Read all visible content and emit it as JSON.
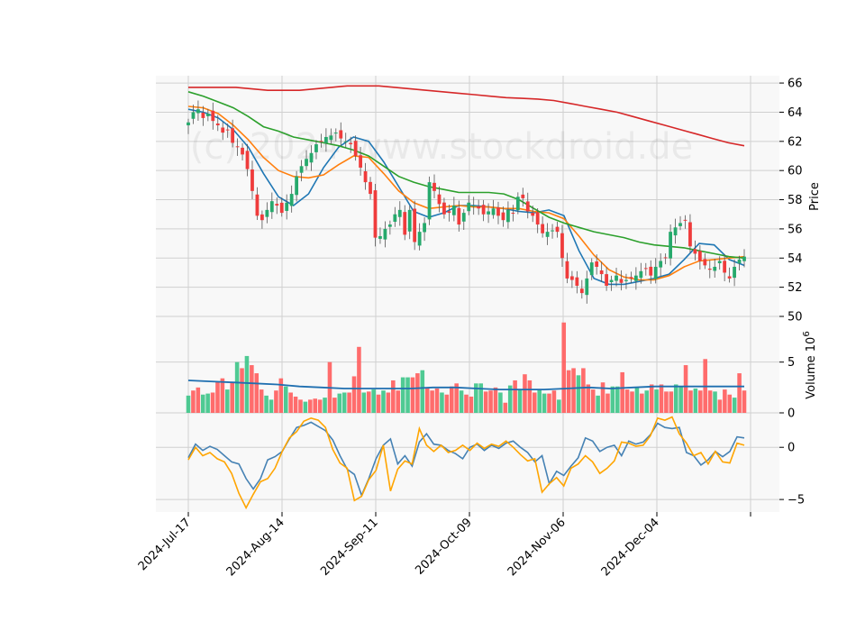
{
  "chart_data": {
    "type": "candlestick",
    "watermark": "(c) 2024 www.stockdroid.de",
    "x_tick_labels": [
      "2024-Jul-17",
      "2024-Aug-14",
      "2024-Sep-11",
      "2024-Oct-09",
      "2024-Nov-06",
      "2024-Dec-04"
    ],
    "grid": true,
    "price_panel": {
      "ylabel": "Price",
      "ylim": [
        50,
        66.5
      ],
      "y_ticks": [
        "50",
        "52",
        "54",
        "56",
        "58",
        "60",
        "62",
        "64",
        "66"
      ],
      "candle_colors": {
        "up": "#26a96c",
        "down": "#ef3b3b"
      },
      "ohlc_closes_approx": [
        63.3,
        64.0,
        64.2,
        63.6,
        63.9,
        63.4,
        63.1,
        62.6,
        62.8,
        61.9,
        61.6,
        61.1,
        60.1,
        58.6,
        56.9,
        56.6,
        57.3,
        57.9,
        57.6,
        57.1,
        57.8,
        58.4,
        59.6,
        60.3,
        60.8,
        61.2,
        61.8,
        62.0,
        62.3,
        62.4,
        62.6,
        62.2,
        62.0,
        61.8,
        61.0,
        60.2,
        59.2,
        58.4,
        55.4,
        55.5,
        56.0,
        56.3,
        57.0,
        57.3,
        55.6,
        57.3,
        55.1,
        55.8,
        56.4,
        59.2,
        58.6,
        57.7,
        57.0,
        57.1,
        57.6,
        56.3,
        57.1,
        57.8,
        57.6,
        57.4,
        57.0,
        57.2,
        57.4,
        56.9,
        56.6,
        57.3,
        57.1,
        58.2,
        58.1,
        57.2,
        56.9,
        56.3,
        55.7,
        55.8,
        55.9,
        55.8,
        54.0,
        52.6,
        52.5,
        52.1,
        51.6,
        52.6,
        53.7,
        53.4,
        52.9,
        52.1,
        52.5,
        52.8,
        52.3,
        52.5,
        52.6,
        52.8,
        53.1,
        53.3,
        52.8,
        53.4,
        53.8,
        54.0,
        55.8,
        56.1,
        56.4,
        56.6,
        54.8,
        54.3,
        53.8,
        53.5,
        53.2,
        53.4,
        53.8,
        53.0,
        52.6,
        53.4,
        53.9,
        54.1
      ],
      "moving_averages": [
        {
          "color": "#1f77b4",
          "values": [
            64.2,
            64.0,
            63.6,
            62.8,
            61.6,
            59.8,
            58.2,
            57.6,
            58.4,
            60.2,
            61.6,
            62.3,
            62.0,
            60.6,
            58.9,
            57.2,
            56.8,
            57.1,
            57.6,
            57.6,
            57.5,
            57.4,
            57.2,
            57.1,
            57.3,
            56.9,
            54.5,
            52.6,
            52.2,
            52.2,
            52.4,
            52.6,
            52.9,
            53.9,
            55.0,
            54.9,
            53.9,
            53.5
          ]
        },
        {
          "color": "#ff7f0e",
          "values": [
            64.4,
            64.3,
            63.9,
            63.1,
            62.1,
            60.9,
            60.0,
            59.6,
            59.5,
            59.7,
            60.4,
            61.0,
            60.9,
            59.8,
            58.6,
            57.8,
            57.4,
            57.5,
            57.6,
            57.5,
            57.5,
            57.4,
            57.4,
            57.2,
            57.1,
            56.7,
            55.5,
            54.2,
            53.2,
            52.7,
            52.5,
            52.5,
            52.8,
            53.4,
            53.8,
            53.9,
            54.0,
            54.1
          ]
        },
        {
          "color": "#2ca02c",
          "values": [
            65.4,
            65.1,
            64.7,
            64.3,
            63.7,
            63.0,
            62.7,
            62.3,
            62.1,
            61.9,
            61.7,
            61.4,
            61.0,
            60.3,
            59.6,
            59.2,
            58.9,
            58.7,
            58.5,
            58.5,
            58.5,
            58.4,
            58.0,
            57.4,
            56.8,
            56.4,
            56.1,
            55.8,
            55.6,
            55.4,
            55.1,
            54.9,
            54.8,
            54.7,
            54.5,
            54.3,
            54.1,
            54.0
          ]
        },
        {
          "color": "#d62728",
          "values": [
            65.7,
            65.7,
            65.7,
            65.7,
            65.6,
            65.5,
            65.5,
            65.5,
            65.6,
            65.7,
            65.8,
            65.8,
            65.8,
            65.7,
            65.6,
            65.5,
            65.4,
            65.3,
            65.2,
            65.1,
            65.0,
            64.95,
            64.9,
            64.8,
            64.6,
            64.4,
            64.2,
            64.0,
            63.7,
            63.4,
            63.1,
            62.8,
            62.5,
            62.2,
            61.9,
            61.7
          ]
        }
      ]
    },
    "volume_panel": {
      "ylabel": "Volume",
      "unit": "10",
      "unit_exponent": "6",
      "ylim": [
        0,
        9.5
      ],
      "y_ticks": [
        "0",
        "5"
      ],
      "volumes": [
        1.7,
        2.2,
        2.5,
        1.8,
        1.9,
        2.0,
        3.1,
        3.4,
        2.3,
        3.0,
        5.0,
        4.4,
        5.6,
        4.7,
        3.9,
        2.3,
        1.7,
        1.3,
        2.2,
        3.4,
        2.6,
        2.0,
        1.6,
        1.3,
        1.1,
        1.3,
        1.4,
        1.3,
        1.5,
        5.0,
        1.5,
        1.9,
        2.0,
        2.0,
        3.6,
        6.5,
        2.0,
        2.1,
        2.3,
        1.8,
        2.2,
        2.0,
        3.2,
        2.2,
        3.5,
        3.5,
        3.5,
        3.9,
        4.2,
        2.5,
        2.2,
        2.4,
        2.0,
        1.8,
        2.6,
        2.9,
        2.2,
        1.8,
        1.6,
        2.9,
        2.9,
        2.1,
        2.2,
        2.5,
        2.0,
        1.0,
        2.7,
        3.2,
        2.3,
        3.8,
        3.2,
        2.0,
        2.3,
        1.9,
        1.9,
        2.2,
        1.3,
        8.9,
        4.2,
        4.4,
        3.7,
        4.4,
        2.8,
        2.3,
        1.7,
        3.0,
        1.9,
        2.6,
        2.6,
        4.0,
        2.3,
        2.1,
        2.5,
        1.9,
        2.2,
        2.8,
        2.3,
        2.8,
        2.1,
        2.1,
        2.8,
        2.6,
        4.7,
        2.2,
        2.4,
        2.2,
        5.3,
        2.2,
        2.1,
        1.3,
        2.3,
        1.8,
        1.5,
        3.9,
        2.2
      ],
      "volume_average": [
        3.2,
        3.1,
        3.0,
        2.9,
        2.8,
        2.6,
        2.5,
        2.4,
        2.4,
        2.4,
        2.4,
        2.5,
        2.5,
        2.4,
        2.3,
        2.3,
        2.3,
        2.4,
        2.5,
        2.4,
        2.5,
        2.6,
        2.6,
        2.6,
        2.6,
        2.6
      ]
    },
    "oscillator_panel": {
      "ylim": [
        -6.2,
        3.3
      ],
      "y_ticks": [
        "-5",
        "0"
      ],
      "series": [
        {
          "color": "#4682b4",
          "values": [
            -1.0,
            0.3,
            -0.3,
            0.1,
            -0.2,
            -0.8,
            -1.4,
            -1.6,
            -3.0,
            -4.0,
            -3.0,
            -1.2,
            -0.9,
            -0.4,
            0.8,
            1.9,
            2.1,
            2.4,
            2.0,
            1.6,
            0.7,
            -0.8,
            -2.1,
            -2.6,
            -4.6,
            -3.0,
            -1.1,
            0.2,
            0.8,
            -1.6,
            -0.8,
            -1.8,
            0.5,
            1.3,
            0.3,
            0.2,
            -0.3,
            -0.6,
            -1.1,
            0.0,
            0.3,
            -0.3,
            0.2,
            -0.1,
            0.4,
            0.6,
            0.0,
            -0.5,
            -1.4,
            -0.8,
            -3.5,
            -2.3,
            -2.7,
            -1.8,
            -1.0,
            0.9,
            0.6,
            -0.4,
            0.0,
            0.2,
            -0.8,
            0.6,
            0.3,
            0.5,
            1.2,
            2.3,
            1.9,
            1.8,
            1.9,
            -0.5,
            -0.8,
            -1.7,
            -1.2,
            -0.4,
            -0.9,
            -0.4,
            1.0,
            0.9
          ]
        },
        {
          "color": "#ffa500",
          "values": [
            -1.2,
            0.0,
            -0.8,
            -0.5,
            -1.1,
            -1.4,
            -2.5,
            -4.4,
            -5.8,
            -4.5,
            -3.3,
            -3.0,
            -2.0,
            -0.4,
            0.9,
            1.5,
            2.5,
            2.8,
            2.6,
            1.9,
            -0.2,
            -1.5,
            -2.0,
            -5.1,
            -4.7,
            -3.1,
            -2.2,
            0.2,
            -4.2,
            -2.1,
            -1.3,
            -1.6,
            1.8,
            0.2,
            -0.4,
            0.2,
            -0.5,
            -0.3,
            0.2,
            -0.3,
            0.4,
            -0.1,
            0.3,
            0.1,
            0.6,
            0.0,
            -0.7,
            -1.3,
            -1.1,
            -4.3,
            -3.5,
            -2.9,
            -3.7,
            -2.0,
            -1.6,
            -0.8,
            -1.4,
            -2.5,
            -2.0,
            -1.3,
            0.5,
            0.4,
            0.1,
            0.2,
            1.1,
            2.8,
            2.6,
            2.9,
            1.3,
            0.4,
            -0.8,
            -0.5,
            -1.6,
            -0.4,
            -1.4,
            -1.5,
            0.4,
            0.2
          ]
        }
      ]
    }
  }
}
